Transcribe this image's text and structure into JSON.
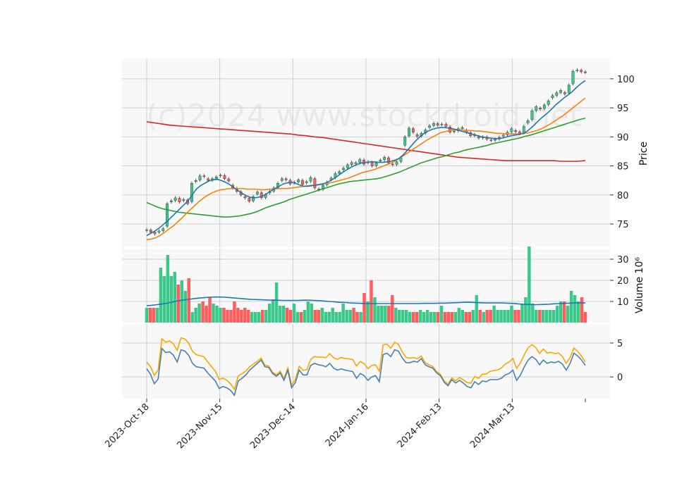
{
  "chart_data": {
    "type": "candlestick",
    "watermark": "(c)2024 www.stockdroid.net",
    "x_tick_labels": [
      "2023-Oct-18",
      "2023-Nov-15",
      "2023-Dec-14",
      "2024-Jan-16",
      "2024-Feb-13",
      "2024-Mar-13"
    ],
    "colors": {
      "up": "#3cc88a",
      "down": "#ff5c5c",
      "ma_short": "#1f77b4",
      "ma_mid": "#ff7f0e",
      "ma_long": "#2ca02c",
      "ma_xlong": "#d62728",
      "volume_ma": "#1f77b4",
      "osc_a": "#4682b4",
      "osc_b": "#ffa500",
      "panel_bg": "#f8f8f8",
      "grid": "#cfcfcf"
    },
    "price_panel": {
      "ylabel": "Price",
      "yticks": [
        75,
        80,
        85,
        90,
        95,
        100
      ],
      "ylim": [
        71,
        103.5
      ],
      "close": [
        74.0,
        73.6,
        73.3,
        73.8,
        74.2,
        78.5,
        79.0,
        79.5,
        78.8,
        79.2,
        78.5,
        82.0,
        82.5,
        83.3,
        83.2,
        82.5,
        82.8,
        83.1,
        83.4,
        82.8,
        82.4,
        81.2,
        80.6,
        80.0,
        79.5,
        78.9,
        79.7,
        80.5,
        79.5,
        80.0,
        80.6,
        81.2,
        82.0,
        82.8,
        82.6,
        81.9,
        82.2,
        82.6,
        81.8,
        82.3,
        83.0,
        81.2,
        80.9,
        81.7,
        82.2,
        82.9,
        83.7,
        84.0,
        84.6,
        85.2,
        85.6,
        85.5,
        86.1,
        85.3,
        85.7,
        85.0,
        85.5,
        86.0,
        86.5,
        85.5,
        85.2,
        85.7,
        86.4,
        90.0,
        91.5,
        90.8,
        90.1,
        90.6,
        91.2,
        91.9,
        92.3,
        92.0,
        92.2,
        91.8,
        90.8,
        91.0,
        91.4,
        91.6,
        90.8,
        90.2,
        90.4,
        89.8,
        90.0,
        89.6,
        89.4,
        89.6,
        89.9,
        90.3,
        90.8,
        91.4,
        90.9,
        90.6,
        91.8,
        92.8,
        94.5,
        95.2,
        94.8,
        95.5,
        96.2,
        97.1,
        97.6,
        98.0,
        97.4,
        98.9,
        101.3,
        101.5,
        101.2,
        101.1
      ],
      "ma_short": [
        73.0,
        73.4,
        73.8,
        74.3,
        74.9,
        75.5,
        76.2,
        76.9,
        77.6,
        78.3,
        79.0,
        80.0,
        81.0,
        81.6,
        82.0,
        82.4,
        82.6,
        82.7,
        82.5,
        82.2,
        81.8,
        81.3,
        80.8,
        80.3,
        79.9,
        79.6,
        79.5,
        79.6,
        79.8,
        80.2,
        80.7,
        81.1,
        81.5,
        81.9,
        82.1,
        82.2,
        82.0,
        81.7,
        81.5,
        81.5,
        81.6,
        81.7,
        81.8,
        82.0,
        82.3,
        82.7,
        83.2,
        83.7,
        84.2,
        84.6,
        85.0,
        85.3,
        85.5,
        85.6,
        85.7,
        85.7,
        85.6,
        85.6,
        85.7,
        85.8,
        86.0,
        86.3,
        86.9,
        87.7,
        88.5,
        89.3,
        90.0,
        90.6,
        91.0,
        91.3,
        91.5,
        91.6,
        91.6,
        91.5,
        91.4,
        91.2,
        91.0,
        90.8,
        90.6,
        90.4,
        90.2,
        90.0,
        89.9,
        89.8,
        89.7,
        89.7,
        89.8,
        90.0,
        90.2,
        90.3,
        90.4,
        90.6,
        91.0,
        91.6,
        92.3,
        93.0,
        93.6,
        94.2,
        94.9,
        95.6,
        96.2,
        96.8,
        97.3,
        97.9,
        98.6,
        99.2,
        99.7
      ],
      "ma_mid": [
        72.3,
        72.4,
        72.6,
        73.0,
        73.5,
        74.1,
        74.6,
        75.3,
        76.0,
        76.8,
        77.5,
        78.2,
        78.9,
        79.5,
        80.0,
        80.4,
        80.7,
        80.9,
        81.0,
        81.1,
        81.1,
        81.1,
        81.1,
        81.0,
        81.0,
        81.0,
        80.9,
        80.9,
        81.0,
        81.0,
        81.1,
        81.1,
        81.1,
        81.2,
        81.3,
        81.4,
        81.5,
        81.6,
        81.7,
        81.8,
        81.9,
        82.0,
        82.1,
        82.3,
        82.5,
        82.7,
        82.9,
        83.2,
        83.5,
        83.8,
        84.0,
        84.2,
        84.4,
        84.7,
        85.0,
        85.3,
        85.6,
        86.0,
        86.5,
        87.0,
        87.5,
        88.0,
        88.5,
        89.0,
        89.5,
        89.9,
        90.3,
        90.7,
        90.9,
        91.1,
        91.2,
        91.2,
        91.2,
        91.1,
        91.1,
        91.0,
        91.0,
        90.9,
        90.8,
        90.7,
        90.6,
        90.6,
        90.5,
        90.5,
        90.5,
        90.5,
        90.6,
        90.7,
        90.9,
        91.1,
        91.4,
        91.8,
        92.2,
        92.7,
        93.2,
        93.7,
        94.3,
        94.9,
        95.5,
        96.1,
        96.7
      ],
      "ma_long": [
        78.7,
        78.3,
        77.9,
        77.6,
        77.4,
        77.2,
        77.0,
        76.9,
        76.8,
        76.7,
        76.6,
        76.5,
        76.4,
        76.3,
        76.2,
        76.2,
        76.3,
        76.4,
        76.6,
        76.8,
        77.1,
        77.5,
        77.9,
        78.2,
        78.5,
        78.8,
        79.2,
        79.5,
        79.8,
        80.1,
        80.4,
        80.7,
        81.0,
        81.3,
        81.6,
        81.9,
        82.1,
        82.3,
        82.4,
        82.5,
        82.6,
        82.7,
        82.8,
        83.0,
        83.3,
        83.6,
        83.9,
        84.3,
        84.7,
        85.1,
        85.5,
        85.8,
        86.1,
        86.4,
        86.6,
        86.9,
        87.2,
        87.4,
        87.7,
        87.9,
        88.1,
        88.3,
        88.5,
        88.8,
        89.0,
        89.2,
        89.4,
        89.6,
        89.8,
        90.1,
        90.3,
        90.6,
        90.9,
        91.2,
        91.5,
        91.8,
        92.1,
        92.4,
        92.7,
        93.0,
        93.2
      ],
      "ma_xlong": [
        92.6,
        92.4,
        92.2,
        92.0,
        91.9,
        91.8,
        91.7,
        91.6,
        91.5,
        91.4,
        91.3,
        91.2,
        91.1,
        91.0,
        90.9,
        90.8,
        90.7,
        90.6,
        90.5,
        90.3,
        90.2,
        90.0,
        89.9,
        89.7,
        89.5,
        89.3,
        89.1,
        88.9,
        88.7,
        88.5,
        88.3,
        88.1,
        87.9,
        87.7,
        87.5,
        87.3,
        87.1,
        86.9,
        86.7,
        86.5,
        86.4,
        86.3,
        86.2,
        86.1,
        86.0,
        85.9,
        85.9,
        85.9,
        85.9,
        85.9,
        85.9,
        85.9,
        85.8,
        85.8,
        85.8,
        85.9
      ]
    },
    "volume_panel": {
      "ylabel": "Volume  10⁶",
      "yticks": [
        10,
        20,
        30
      ],
      "ylim": [
        0,
        35
      ],
      "values": [
        7,
        7,
        7,
        7,
        26,
        22,
        32,
        22,
        24,
        18,
        20,
        15,
        21,
        5,
        7,
        9,
        10,
        8,
        12,
        9,
        8,
        7,
        7,
        6,
        6,
        10,
        7,
        6,
        7,
        6,
        5,
        5,
        5,
        6,
        6,
        9,
        11,
        19,
        8,
        8,
        7,
        6,
        9,
        5,
        5,
        6,
        10,
        9,
        6,
        6,
        7,
        5,
        5,
        7,
        5,
        5,
        9,
        6,
        6,
        7,
        5,
        5,
        14,
        10,
        20,
        12,
        8,
        8,
        8,
        8,
        13,
        7,
        6,
        6,
        6,
        5,
        5,
        5,
        6,
        5,
        6,
        5,
        5,
        5,
        8,
        5,
        5,
        5,
        5,
        7,
        6,
        5,
        5,
        6,
        13,
        6,
        5,
        6,
        6,
        8,
        6,
        6,
        6,
        6,
        8,
        6,
        6,
        9,
        12,
        36,
        9,
        6,
        6,
        6,
        6,
        6,
        6,
        8,
        10,
        10,
        8,
        15,
        13,
        10,
        12,
        5
      ],
      "ma": [
        8.0,
        8.2,
        8.5,
        8.8,
        9.2,
        9.8,
        10.3,
        10.7,
        11.0,
        11.3,
        11.6,
        11.8,
        12.0,
        12.1,
        12.1,
        12.0,
        11.8,
        11.6,
        11.4,
        11.2,
        11.0,
        10.9,
        10.8,
        10.7,
        10.6,
        10.6,
        10.5,
        10.5,
        10.5,
        10.5,
        10.6,
        10.6,
        10.5,
        10.4,
        10.2,
        10.0,
        9.8,
        9.6,
        9.5,
        9.3,
        9.2,
        9.1,
        9.0,
        9.0,
        9.0,
        9.0,
        9.0,
        9.0,
        9.0,
        9.0,
        9.0,
        9.0,
        9.0,
        9.1,
        9.1,
        9.1,
        9.2,
        9.2,
        9.3,
        9.4,
        9.5,
        9.6,
        9.6,
        9.5,
        9.4,
        9.3,
        9.3,
        9.3,
        9.3,
        9.2,
        9.1,
        8.9,
        8.7,
        8.6,
        8.5,
        8.5,
        8.6,
        8.7,
        8.9,
        9.0,
        9.1,
        9.2,
        9.3,
        9.3,
        9.3
      ]
    },
    "oscillator_panel": {
      "yticks": [
        0,
        5
      ],
      "ylim": [
        -3.2,
        7.8
      ],
      "series_a": [
        1.2,
        0.4,
        -1.0,
        -0.3,
        4.2,
        3.6,
        3.7,
        3.2,
        2.2,
        4.0,
        3.8,
        3.2,
        2.0,
        1.5,
        1.4,
        1.3,
        0.6,
        0.0,
        -0.6,
        -1.7,
        -1.4,
        -1.6,
        -2.0,
        -2.7,
        -0.6,
        -0.2,
        0.3,
        1.0,
        1.5,
        2.0,
        2.5,
        1.5,
        1.4,
        0.5,
        0.1,
        0.6,
        -0.5,
        1.0,
        -1.6,
        -0.8,
        1.0,
        0.3,
        0.3,
        1.7,
        2.0,
        1.8,
        1.7,
        1.5,
        2.0,
        1.3,
        1.0,
        1.2,
        1.0,
        0.9,
        0.8,
        -0.2,
        0.5,
        0.2,
        -0.5,
        0.0,
        0.2,
        -0.7,
        3.3,
        3.5,
        3.0,
        4.0,
        3.8,
        2.8,
        2.1,
        2.1,
        2.3,
        2.2,
        2.7,
        1.8,
        1.5,
        1.3,
        0.6,
        0.2,
        -0.8,
        -1.3,
        -0.4,
        -0.9,
        -0.5,
        -0.9,
        -1.4,
        -1.6,
        -0.7,
        -1.1,
        -0.6,
        -0.7,
        -0.4,
        -0.4,
        -0.4,
        -0.2,
        0.3,
        0.5,
        1.0,
        -0.5,
        0.3,
        1.5,
        2.5,
        3.0,
        2.6,
        1.8,
        2.5,
        2.0,
        2.2,
        2.1,
        2.3,
        1.9,
        1.0,
        2.0,
        3.5,
        3.1,
        2.5,
        1.7
      ]
    }
  }
}
